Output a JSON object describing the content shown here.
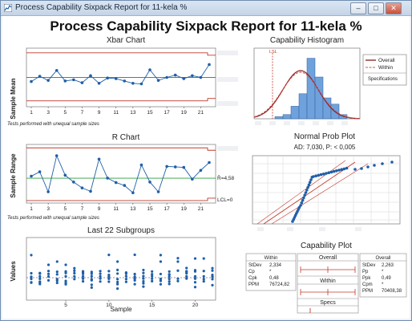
{
  "window": {
    "title": "Process Capability Sixpack Report for 11-kela %",
    "buttons": {
      "minimize": "–",
      "maximize": "□",
      "close": "✕"
    }
  },
  "report_title": "Process Capability Sixpack Report for 11-kela %",
  "notes": {
    "xbar_tests": "Tests performed with unequal sample sizes",
    "r_tests": "Tests performed with unequal sample sizes"
  },
  "colors": {
    "series": "#1f5fa8",
    "center_line": "#2e9e3e",
    "limit": "#c0392b",
    "histogram_bar": "#6fa1dc",
    "histogram_edge": "#2f5f9a",
    "overall_curve": "#8b1a1a",
    "within_curve": "#d0504a",
    "lsl": "#c0392b"
  },
  "chart_data": [
    {
      "type": "line",
      "title": "Xbar Chart",
      "ylabel": "Sample Mean",
      "x_ticks": [
        1,
        3,
        5,
        7,
        9,
        11,
        13,
        15,
        17,
        19,
        21
      ],
      "x": [
        1,
        2,
        3,
        4,
        5,
        6,
        7,
        8,
        9,
        10,
        11,
        12,
        13,
        14,
        15,
        16,
        17,
        18,
        19,
        20,
        21,
        22
      ],
      "values": [
        3.3,
        4.2,
        3.5,
        5.2,
        3.4,
        3.6,
        3.1,
        4.3,
        3.0,
        3.9,
        3.8,
        3.4,
        3.0,
        2.9,
        5.3,
        3.5,
        4.0,
        4.4,
        3.8,
        4.3,
        4.0,
        6.2
      ],
      "center_line": 4.0,
      "ucl": 8.2,
      "lcl": 0.0,
      "ylim": [
        -1,
        9
      ],
      "grid": false
    },
    {
      "type": "line",
      "title": "R Chart",
      "ylabel": "Sample Range",
      "x_ticks": [
        1,
        3,
        5,
        7,
        9,
        11,
        13,
        15,
        17,
        19,
        21
      ],
      "x": [
        1,
        2,
        3,
        4,
        5,
        6,
        7,
        8,
        9,
        10,
        11,
        12,
        13,
        14,
        15,
        16,
        17,
        18,
        19,
        20,
        21,
        22
      ],
      "values": [
        5.0,
        5.9,
        1.8,
        9.2,
        5.2,
        3.8,
        2.6,
        1.9,
        8.5,
        4.6,
        3.7,
        3.1,
        1.6,
        7.3,
        3.8,
        1.8,
        7.0,
        6.9,
        6.8,
        4.4,
        6.2,
        7.8
      ],
      "center_line": 4.58,
      "center_label": "R̄=4,58",
      "ucl": 10.8,
      "lcl": 0,
      "lcl_label": "LCL=0",
      "ylim": [
        -0.5,
        11.5
      ],
      "grid": false
    },
    {
      "type": "scatter",
      "title": "Last 22 Subgroups",
      "xlabel": "Sample",
      "ylabel": "Values",
      "x_ticks": [
        5,
        10,
        15,
        20
      ],
      "grid": false
    },
    {
      "type": "bar",
      "title": "Capability Histogram",
      "lsl_label": "LSL",
      "values": [
        1,
        2,
        6,
        12,
        29,
        20,
        10,
        7,
        2
      ],
      "legend": {
        "position": "top-right",
        "entries": [
          "Overall",
          "Within"
        ],
        "subtitle": "Specifications"
      }
    },
    {
      "type": "scatter",
      "title": "Normal Prob Plot",
      "subtitle": "AD: 7,030, P: < 0,005",
      "grid": true
    },
    {
      "type": "table",
      "title": "Capability Plot",
      "panels": [
        "Overall",
        "Within",
        "Specs"
      ],
      "within": {
        "header": "Within",
        "rows": [
          {
            "label": "StDev",
            "value": "2,334"
          },
          {
            "label": "Cp",
            "value": "*"
          },
          {
            "label": "Cpk",
            "value": "0,48"
          },
          {
            "label": "PPM",
            "value": "76724,82"
          }
        ]
      },
      "overall": {
        "header": "Overall",
        "rows": [
          {
            "label": "StDev",
            "value": "2,263"
          },
          {
            "label": "Pp",
            "value": "*"
          },
          {
            "label": "Ppk",
            "value": "0,49"
          },
          {
            "label": "Cpm",
            "value": "*"
          },
          {
            "label": "PPM",
            "value": "70408,38"
          }
        ]
      }
    }
  ]
}
